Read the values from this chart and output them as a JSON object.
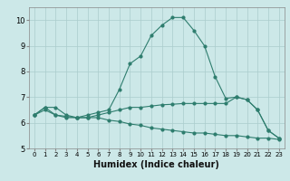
{
  "title": "",
  "xlabel": "Humidex (Indice chaleur)",
  "ylabel": "",
  "background_color": "#cce8e8",
  "grid_color": "#aacccc",
  "line_color": "#2e7d6e",
  "xlim": [
    -0.5,
    23.5
  ],
  "ylim": [
    5,
    10.5
  ],
  "yticks": [
    5,
    6,
    7,
    8,
    9,
    10
  ],
  "xticks": [
    0,
    1,
    2,
    3,
    4,
    5,
    6,
    7,
    8,
    9,
    10,
    11,
    12,
    13,
    14,
    15,
    16,
    17,
    18,
    19,
    20,
    21,
    22,
    23
  ],
  "line1_x": [
    0,
    1,
    2,
    3,
    4,
    5,
    6,
    7,
    8,
    9,
    10,
    11,
    12,
    13,
    14,
    15,
    16,
    17,
    18,
    19,
    20,
    21,
    22,
    23
  ],
  "line1_y": [
    6.3,
    6.6,
    6.6,
    6.3,
    6.2,
    6.2,
    6.3,
    6.4,
    6.5,
    6.6,
    6.6,
    6.65,
    6.7,
    6.72,
    6.75,
    6.75,
    6.75,
    6.75,
    6.75,
    7.0,
    6.9,
    6.5,
    5.7,
    5.4
  ],
  "line2_x": [
    0,
    1,
    2,
    3,
    4,
    5,
    6,
    7,
    8,
    9,
    10,
    11,
    12,
    13,
    14,
    15,
    16,
    17,
    18,
    19,
    20,
    21,
    22,
    23
  ],
  "line2_y": [
    6.3,
    6.6,
    6.3,
    6.2,
    6.2,
    6.3,
    6.4,
    6.5,
    7.3,
    8.3,
    8.6,
    9.4,
    9.8,
    10.1,
    10.1,
    9.6,
    9.0,
    7.8,
    6.95,
    7.0,
    6.9,
    6.5,
    5.7,
    5.4
  ],
  "line3_x": [
    0,
    1,
    2,
    3,
    4,
    5,
    6,
    7,
    8,
    9,
    10,
    11,
    12,
    13,
    14,
    15,
    16,
    17,
    18,
    19,
    20,
    21,
    22,
    23
  ],
  "line3_y": [
    6.3,
    6.5,
    6.3,
    6.25,
    6.2,
    6.2,
    6.2,
    6.1,
    6.05,
    5.95,
    5.9,
    5.8,
    5.75,
    5.7,
    5.65,
    5.6,
    5.6,
    5.55,
    5.5,
    5.5,
    5.45,
    5.4,
    5.4,
    5.35
  ]
}
